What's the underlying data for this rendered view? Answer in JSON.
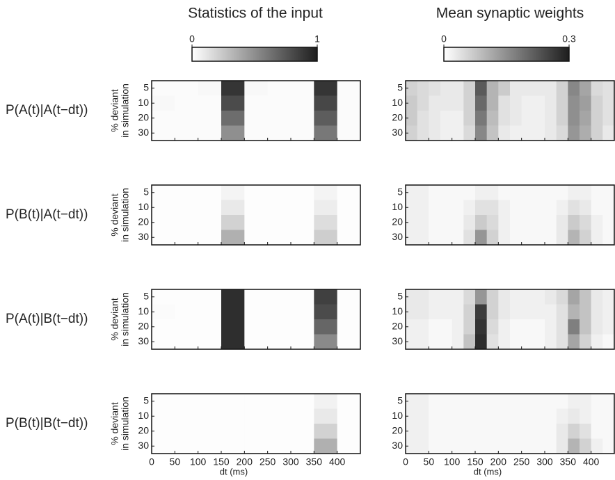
{
  "chart_data": [
    {
      "type": "heatmap",
      "title": "Statistics of the input",
      "row_label": "P(A(t)|A(t−dt))",
      "ylabel": [
        "% deviant",
        "in simulation"
      ],
      "rows": [
        5,
        10,
        20,
        30
      ],
      "x_bins": [
        0,
        50,
        100,
        150,
        200,
        250,
        300,
        350,
        400,
        450
      ],
      "xlim": [
        0,
        450
      ],
      "xticks": [
        0,
        50,
        100,
        150,
        200,
        250,
        300,
        350,
        400
      ],
      "clim": [
        0,
        1
      ],
      "colorbar_ticks": [
        0,
        1
      ],
      "z": [
        [
          0.02,
          0.02,
          0.03,
          0.9,
          0.03,
          0.02,
          0.02,
          0.9,
          0.02
        ],
        [
          0.03,
          0.02,
          0.02,
          0.8,
          0.02,
          0.02,
          0.02,
          0.82,
          0.02
        ],
        [
          0.02,
          0.02,
          0.02,
          0.65,
          0.02,
          0.02,
          0.02,
          0.72,
          0.02
        ],
        [
          0.02,
          0.02,
          0.02,
          0.5,
          0.02,
          0.02,
          0.02,
          0.6,
          0.02
        ]
      ]
    },
    {
      "type": "heatmap",
      "title": "Mean synaptic weights",
      "rows": [
        5,
        10,
        20,
        30
      ],
      "x_bins": [
        0,
        25,
        50,
        75,
        100,
        125,
        150,
        175,
        200,
        225,
        250,
        275,
        300,
        325,
        350,
        375,
        400,
        425,
        450
      ],
      "xlim": [
        0,
        450
      ],
      "xticks": [
        0,
        50,
        100,
        150,
        200,
        250,
        300,
        350,
        400
      ],
      "clim": [
        0,
        0.3
      ],
      "colorbar_ticks": [
        0,
        0.3
      ],
      "z": [
        [
          0.06,
          0.05,
          0.04,
          0.03,
          0.03,
          0.06,
          0.22,
          0.1,
          0.07,
          0.03,
          0.03,
          0.03,
          0.03,
          0.06,
          0.16,
          0.12,
          0.05,
          0.04
        ],
        [
          0.07,
          0.05,
          0.03,
          0.03,
          0.03,
          0.06,
          0.2,
          0.1,
          0.04,
          0.03,
          0.02,
          0.02,
          0.03,
          0.06,
          0.15,
          0.13,
          0.06,
          0.04
        ],
        [
          0.07,
          0.04,
          0.03,
          0.02,
          0.02,
          0.06,
          0.18,
          0.09,
          0.04,
          0.03,
          0.02,
          0.02,
          0.03,
          0.06,
          0.15,
          0.12,
          0.06,
          0.04
        ],
        [
          0.06,
          0.04,
          0.03,
          0.02,
          0.02,
          0.05,
          0.16,
          0.08,
          0.03,
          0.02,
          0.02,
          0.02,
          0.03,
          0.05,
          0.14,
          0.11,
          0.06,
          0.03
        ]
      ]
    },
    {
      "type": "heatmap",
      "row_label": "P(B(t)|A(t−dt))",
      "ylabel": [
        "% deviant",
        "in simulation"
      ],
      "rows": [
        5,
        10,
        20,
        30
      ],
      "x_bins": [
        0,
        50,
        100,
        150,
        200,
        250,
        300,
        350,
        400,
        450
      ],
      "xlim": [
        0,
        450
      ],
      "xticks": [
        0,
        50,
        100,
        150,
        200,
        250,
        300,
        350,
        400
      ],
      "clim": [
        0,
        1
      ],
      "z": [
        [
          0.01,
          0.01,
          0.01,
          0.05,
          0.01,
          0.01,
          0.01,
          0.05,
          0.01
        ],
        [
          0.01,
          0.01,
          0.01,
          0.1,
          0.01,
          0.01,
          0.01,
          0.08,
          0.01
        ],
        [
          0.01,
          0.01,
          0.01,
          0.2,
          0.01,
          0.01,
          0.01,
          0.15,
          0.01
        ],
        [
          0.01,
          0.01,
          0.01,
          0.35,
          0.01,
          0.01,
          0.01,
          0.22,
          0.01
        ]
      ]
    },
    {
      "type": "heatmap",
      "rows": [
        5,
        10,
        20,
        30
      ],
      "x_bins": [
        0,
        25,
        50,
        75,
        100,
        125,
        150,
        175,
        200,
        225,
        250,
        275,
        300,
        325,
        350,
        375,
        400,
        425,
        450
      ],
      "xlim": [
        0,
        450
      ],
      "xticks": [
        0,
        50,
        100,
        150,
        200,
        250,
        300,
        350,
        400
      ],
      "clim": [
        0,
        0.3
      ],
      "z": [
        [
          0.02,
          0.02,
          0.01,
          0.01,
          0.01,
          0.01,
          0.02,
          0.02,
          0.01,
          0.01,
          0.01,
          0.01,
          0.01,
          0.01,
          0.02,
          0.02,
          0.01,
          0.01
        ],
        [
          0.02,
          0.02,
          0.01,
          0.01,
          0.01,
          0.02,
          0.04,
          0.04,
          0.02,
          0.01,
          0.01,
          0.01,
          0.01,
          0.02,
          0.04,
          0.03,
          0.01,
          0.01
        ],
        [
          0.02,
          0.02,
          0.01,
          0.01,
          0.01,
          0.03,
          0.07,
          0.05,
          0.02,
          0.01,
          0.01,
          0.01,
          0.01,
          0.03,
          0.07,
          0.05,
          0.02,
          0.01
        ],
        [
          0.02,
          0.02,
          0.01,
          0.01,
          0.01,
          0.04,
          0.14,
          0.06,
          0.02,
          0.01,
          0.01,
          0.01,
          0.01,
          0.03,
          0.1,
          0.06,
          0.02,
          0.01
        ]
      ]
    },
    {
      "type": "heatmap",
      "row_label": "P(A(t)|B(t−dt))",
      "ylabel": [
        "% deviant",
        "in simulation"
      ],
      "rows": [
        5,
        10,
        20,
        30
      ],
      "x_bins": [
        0,
        50,
        100,
        150,
        200,
        250,
        300,
        350,
        400,
        450
      ],
      "xlim": [
        0,
        450
      ],
      "xticks": [
        0,
        50,
        100,
        150,
        200,
        250,
        300,
        350,
        400
      ],
      "clim": [
        0,
        1
      ],
      "z": [
        [
          0.01,
          0.01,
          0.01,
          0.93,
          0.01,
          0.01,
          0.01,
          0.85,
          0.01
        ],
        [
          0.02,
          0.01,
          0.01,
          0.93,
          0.01,
          0.01,
          0.01,
          0.8,
          0.01
        ],
        [
          0.01,
          0.01,
          0.01,
          0.93,
          0.01,
          0.01,
          0.01,
          0.68,
          0.01
        ],
        [
          0.01,
          0.01,
          0.01,
          0.93,
          0.01,
          0.01,
          0.01,
          0.52,
          0.01
        ]
      ]
    },
    {
      "type": "heatmap",
      "rows": [
        5,
        10,
        20,
        30
      ],
      "x_bins": [
        0,
        25,
        50,
        75,
        100,
        125,
        150,
        175,
        200,
        225,
        250,
        275,
        300,
        325,
        350,
        375,
        400,
        425,
        450
      ],
      "xlim": [
        0,
        450
      ],
      "xticks": [
        0,
        50,
        100,
        150,
        200,
        250,
        300,
        350,
        400
      ],
      "clim": [
        0,
        0.3
      ],
      "z": [
        [
          0.03,
          0.03,
          0.02,
          0.02,
          0.02,
          0.05,
          0.14,
          0.06,
          0.03,
          0.02,
          0.02,
          0.02,
          0.03,
          0.05,
          0.12,
          0.08,
          0.03,
          0.02
        ],
        [
          0.03,
          0.03,
          0.02,
          0.02,
          0.02,
          0.06,
          0.26,
          0.06,
          0.03,
          0.02,
          0.02,
          0.02,
          0.02,
          0.04,
          0.1,
          0.08,
          0.03,
          0.02
        ],
        [
          0.02,
          0.02,
          0.01,
          0.01,
          0.02,
          0.06,
          0.27,
          0.05,
          0.02,
          0.01,
          0.01,
          0.01,
          0.02,
          0.04,
          0.17,
          0.08,
          0.03,
          0.02
        ],
        [
          0.02,
          0.02,
          0.01,
          0.01,
          0.02,
          0.08,
          0.28,
          0.04,
          0.02,
          0.01,
          0.01,
          0.01,
          0.02,
          0.04,
          0.12,
          0.06,
          0.02,
          0.01
        ]
      ]
    },
    {
      "type": "heatmap",
      "row_label": "P(B(t)|B(t−dt))",
      "ylabel": [
        "% deviant",
        "in simulation"
      ],
      "xlabel": "dt (ms)",
      "rows": [
        5,
        10,
        20,
        30
      ],
      "x_bins": [
        0,
        50,
        100,
        150,
        200,
        250,
        300,
        350,
        400,
        450
      ],
      "xlim": [
        0,
        450
      ],
      "xticks": [
        0,
        50,
        100,
        150,
        200,
        250,
        300,
        350,
        400
      ],
      "clim": [
        0,
        1
      ],
      "z": [
        [
          0.01,
          0.01,
          0.01,
          0.01,
          0.01,
          0.01,
          0.01,
          0.06,
          0.01
        ],
        [
          0.01,
          0.01,
          0.01,
          0.01,
          0.01,
          0.01,
          0.01,
          0.1,
          0.01
        ],
        [
          0.01,
          0.01,
          0.01,
          0.01,
          0.01,
          0.01,
          0.01,
          0.2,
          0.01
        ],
        [
          0.01,
          0.01,
          0.01,
          0.01,
          0.01,
          0.01,
          0.01,
          0.35,
          0.01
        ]
      ]
    },
    {
      "type": "heatmap",
      "xlabel": "dt (ms)",
      "rows": [
        5,
        10,
        20,
        30
      ],
      "x_bins": [
        0,
        25,
        50,
        75,
        100,
        125,
        150,
        175,
        200,
        225,
        250,
        275,
        300,
        325,
        350,
        375,
        400,
        425,
        450
      ],
      "xlim": [
        0,
        450
      ],
      "xticks": [
        0,
        50,
        100,
        150,
        200,
        250,
        300,
        350,
        400
      ],
      "clim": [
        0,
        0.3
      ],
      "z": [
        [
          0.02,
          0.02,
          0.01,
          0.01,
          0.01,
          0.01,
          0.01,
          0.01,
          0.01,
          0.01,
          0.01,
          0.01,
          0.01,
          0.01,
          0.02,
          0.02,
          0.01,
          0.01
        ],
        [
          0.02,
          0.02,
          0.01,
          0.01,
          0.01,
          0.01,
          0.01,
          0.01,
          0.01,
          0.01,
          0.01,
          0.01,
          0.01,
          0.02,
          0.03,
          0.02,
          0.01,
          0.01
        ],
        [
          0.02,
          0.02,
          0.01,
          0.01,
          0.01,
          0.01,
          0.01,
          0.01,
          0.01,
          0.01,
          0.01,
          0.01,
          0.01,
          0.03,
          0.06,
          0.04,
          0.01,
          0.01
        ],
        [
          0.02,
          0.02,
          0.01,
          0.01,
          0.01,
          0.01,
          0.01,
          0.01,
          0.01,
          0.01,
          0.01,
          0.01,
          0.01,
          0.03,
          0.1,
          0.06,
          0.02,
          0.01
        ]
      ]
    }
  ]
}
